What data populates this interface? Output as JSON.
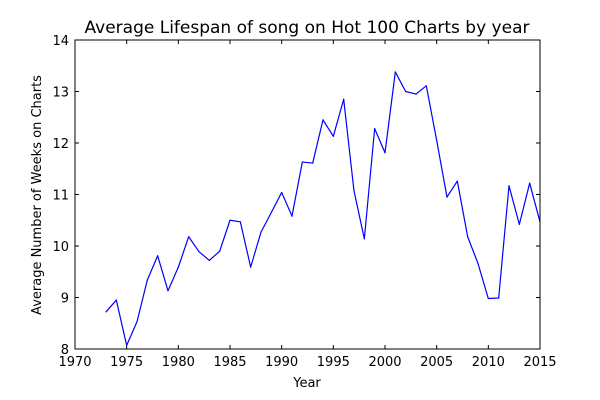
{
  "chart_data": {
    "type": "line",
    "title": "Average Lifespan of song on Hot 100 Charts by year",
    "xlabel": "Year",
    "ylabel": "Average Number of Weeks on Charts",
    "xlim": [
      1970,
      2015
    ],
    "ylim": [
      8,
      14
    ],
    "x_ticks": [
      1970,
      1975,
      1980,
      1985,
      1990,
      1995,
      2000,
      2005,
      2010,
      2015
    ],
    "y_ticks": [
      8,
      9,
      10,
      11,
      12,
      13,
      14
    ],
    "grid": false,
    "line_color": "#0000ff",
    "series": [
      {
        "x": [
          1973,
          1974,
          1975,
          1976,
          1977,
          1978,
          1979,
          1980,
          1981,
          1982,
          1983,
          1984,
          1985,
          1986,
          1987,
          1988,
          1989,
          1990,
          1991,
          1992,
          1993,
          1994,
          1995,
          1996,
          1997,
          1998,
          1999,
          2000,
          2001,
          2002,
          2003,
          2004,
          2005,
          2006,
          2007,
          2008,
          2009,
          2010,
          2011,
          2012,
          2013,
          2014,
          2015
        ],
        "values": [
          8.72,
          8.95,
          8.07,
          8.53,
          9.34,
          9.81,
          9.13,
          9.59,
          10.18,
          9.89,
          9.72,
          9.9,
          10.5,
          10.47,
          9.59,
          10.27,
          10.65,
          11.04,
          10.58,
          11.63,
          11.61,
          12.45,
          12.13,
          12.85,
          11.07,
          10.14,
          12.28,
          11.81,
          13.38,
          13.0,
          12.95,
          13.11,
          12.05,
          10.95,
          11.26,
          10.18,
          9.66,
          8.98,
          8.99,
          11.17,
          10.42,
          11.22,
          10.47
        ]
      }
    ]
  }
}
